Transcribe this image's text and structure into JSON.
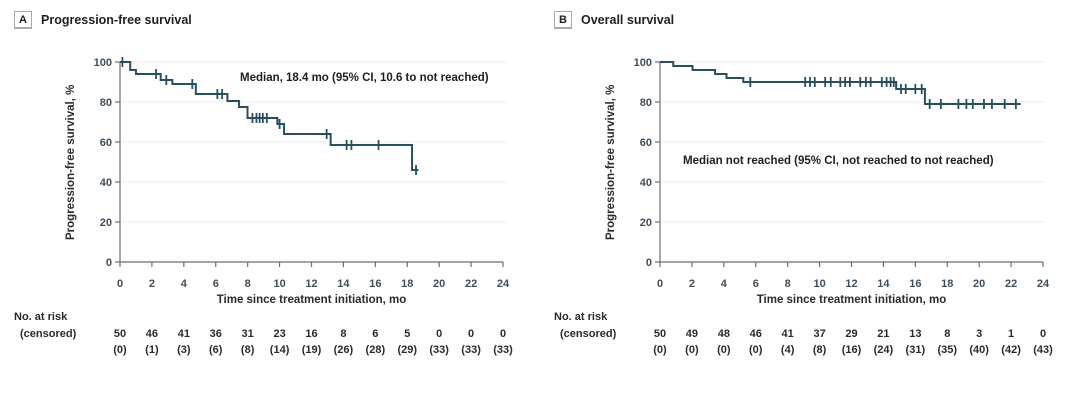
{
  "colors": {
    "curve": "#27505f",
    "grid": "#ececec",
    "axis": "#6d6d6d",
    "tick_label": "#404e5a",
    "text": "#1f1f1f"
  },
  "chart_data": [
    {
      "type": "line",
      "subtype": "kaplan-meier-step",
      "panel_label": "A",
      "title": "Progression-free survival",
      "xlabel": "Time since treatment initiation, mo",
      "ylabel": "Progression-free survival, %",
      "annotation": "Median, 18.4 mo (95% CI, 10.6 to not reached)",
      "xlim": [
        0,
        24
      ],
      "ylim": [
        0,
        100
      ],
      "x_ticks": [
        0,
        2,
        4,
        6,
        8,
        10,
        12,
        14,
        16,
        18,
        20,
        22,
        24
      ],
      "y_ticks": [
        0,
        20,
        40,
        60,
        80,
        100
      ],
      "grid": "horizontal",
      "legend": "none",
      "steps": [
        [
          0,
          100
        ],
        [
          0.64,
          96
        ],
        [
          1.0,
          94
        ],
        [
          2.55,
          91
        ],
        [
          3.28,
          89
        ],
        [
          4.75,
          84
        ],
        [
          6.73,
          80.5
        ],
        [
          7.46,
          77.5
        ],
        [
          7.99,
          72
        ],
        [
          9.86,
          69
        ],
        [
          10.28,
          64
        ],
        [
          13.2,
          58.5
        ],
        [
          18.3,
          46
        ]
      ],
      "end_t": 18.7,
      "censors": [
        [
          0.15,
          100
        ],
        [
          2.26,
          94
        ],
        [
          2.9,
          91
        ],
        [
          4.53,
          89
        ],
        [
          6.1,
          84
        ],
        [
          6.4,
          84
        ],
        [
          8.3,
          72
        ],
        [
          8.55,
          72
        ],
        [
          8.75,
          72
        ],
        [
          8.95,
          72
        ],
        [
          9.2,
          72
        ],
        [
          10.0,
          69
        ],
        [
          12.95,
          64
        ],
        [
          14.2,
          58.5
        ],
        [
          14.5,
          58.5
        ],
        [
          16.2,
          58.5
        ],
        [
          18.55,
          46
        ]
      ],
      "at_risk": {
        "label1": "No. at risk",
        "label2": "(censored)",
        "risk": [
          "50",
          "46",
          "41",
          "36",
          "31",
          "23",
          "16",
          "8",
          "6",
          "5",
          "0",
          "0",
          "0"
        ],
        "censored": [
          "(0)",
          "(1)",
          "(3)",
          "(6)",
          "(8)",
          "(14)",
          "(19)",
          "(26)",
          "(28)",
          "(29)",
          "(33)",
          "(33)",
          "(33)"
        ]
      }
    },
    {
      "type": "line",
      "subtype": "kaplan-meier-step",
      "panel_label": "B",
      "title": "Overall survival",
      "xlabel": "Time since treatment initiation, mo",
      "ylabel": "Progression-free survival, %",
      "annotation": "Median not reached (95% CI, not reached to not reached)",
      "xlim": [
        0,
        24
      ],
      "ylim": [
        0,
        100
      ],
      "x_ticks": [
        0,
        2,
        4,
        6,
        8,
        10,
        12,
        14,
        16,
        18,
        20,
        22,
        24
      ],
      "y_ticks": [
        0,
        20,
        40,
        60,
        80,
        100
      ],
      "grid": "horizontal",
      "legend": "none",
      "steps": [
        [
          0,
          100
        ],
        [
          0.83,
          98
        ],
        [
          2.04,
          96
        ],
        [
          3.45,
          94
        ],
        [
          4.17,
          92
        ],
        [
          5.22,
          90
        ],
        [
          14.8,
          86.5
        ],
        [
          16.6,
          79
        ]
      ],
      "end_t": 22.6,
      "censors": [
        [
          5.66,
          90
        ],
        [
          9.1,
          90
        ],
        [
          9.4,
          90
        ],
        [
          9.7,
          90
        ],
        [
          10.35,
          90
        ],
        [
          10.7,
          90
        ],
        [
          11.3,
          90
        ],
        [
          11.6,
          90
        ],
        [
          11.9,
          90
        ],
        [
          12.55,
          90
        ],
        [
          12.9,
          90
        ],
        [
          13.2,
          90
        ],
        [
          13.9,
          90
        ],
        [
          14.2,
          90
        ],
        [
          14.45,
          90
        ],
        [
          14.65,
          90
        ],
        [
          15.1,
          86.5
        ],
        [
          15.4,
          86.5
        ],
        [
          16.0,
          86.5
        ],
        [
          16.4,
          86.5
        ],
        [
          16.9,
          79
        ],
        [
          17.6,
          79
        ],
        [
          18.7,
          79
        ],
        [
          19.2,
          79
        ],
        [
          19.6,
          79
        ],
        [
          20.3,
          79
        ],
        [
          20.8,
          79
        ],
        [
          21.6,
          79
        ],
        [
          22.3,
          79
        ]
      ],
      "at_risk": {
        "label1": "No. at risk",
        "label2": "(censored)",
        "risk": [
          "50",
          "49",
          "48",
          "46",
          "41",
          "37",
          "29",
          "21",
          "13",
          "8",
          "3",
          "1",
          "0"
        ],
        "censored": [
          "(0)",
          "(0)",
          "(0)",
          "(0)",
          "(4)",
          "(8)",
          "(16)",
          "(24)",
          "(31)",
          "(35)",
          "(40)",
          "(42)",
          "(43)"
        ]
      }
    }
  ]
}
